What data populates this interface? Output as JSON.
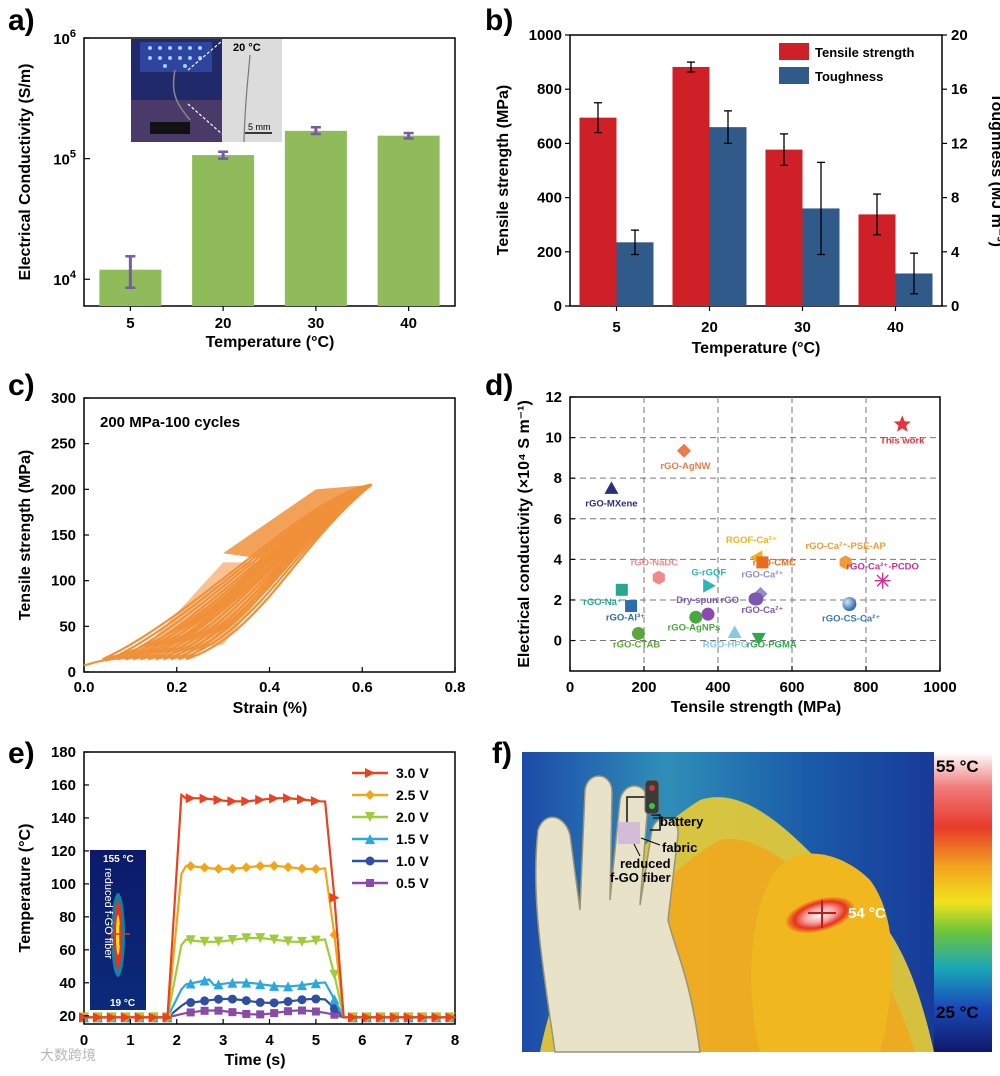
{
  "panels": {
    "a": "a)",
    "b": "b)",
    "c": "c)",
    "d": "d)",
    "e": "e)",
    "f": "f)"
  },
  "colors": {
    "green": "#8fbb5a",
    "purple": "#7a5aa6",
    "red": "#cf2027",
    "blue": "#2f5a8a",
    "orange": "#f0913a"
  },
  "chart_data": [
    {
      "id": "a",
      "type": "bar",
      "xlabel": "Temperature (°C)",
      "ylabel": "Electrical Conductivity (S/m)",
      "yscale": "log",
      "ylim": [
        6000,
        1000000
      ],
      "ytick_labels": [
        {
          "base": "10",
          "exp": "4",
          "v": 10000
        },
        {
          "base": "10",
          "exp": "5",
          "v": 100000
        },
        {
          "base": "10",
          "exp": "6",
          "v": 1000000
        }
      ],
      "categories": [
        "5",
        "20",
        "30",
        "40"
      ],
      "values": [
        12000,
        107000,
        170000,
        155000
      ],
      "err_low": [
        8500,
        100000,
        160000,
        147000
      ],
      "err_high": [
        15500,
        114000,
        182000,
        163000
      ],
      "inset": {
        "temp_label": "20 °C",
        "scale_label": "5 mm"
      }
    },
    {
      "id": "b",
      "type": "bar",
      "xlabel": "Temperature (°C)",
      "ylabel": "Tensile strength (MPa)",
      "ylabel2": "Toughness (MJ m⁻³)",
      "ylim": [
        0,
        1000
      ],
      "ylim2": [
        0,
        20
      ],
      "yticks": [
        0,
        200,
        400,
        600,
        800,
        1000
      ],
      "yticks2": [
        0,
        4,
        8,
        12,
        16,
        20
      ],
      "categories": [
        "5",
        "20",
        "30",
        "40"
      ],
      "series": [
        {
          "name": "Tensile strength",
          "axis": "left",
          "values": [
            695,
            882,
            577,
            338
          ],
          "err": [
            55,
            18,
            58,
            75
          ]
        },
        {
          "name": "Toughness",
          "axis": "right",
          "values": [
            4.7,
            13.2,
            7.2,
            2.4
          ],
          "err": [
            0.9,
            1.2,
            3.4,
            1.5
          ]
        }
      ],
      "legend": "top-right"
    },
    {
      "id": "c",
      "type": "line",
      "title": "200 MPa-100 cycles",
      "xlabel": "Strain (%)",
      "ylabel": "Tensile strength (MPa)",
      "xlim": [
        0,
        0.8
      ],
      "ylim": [
        0,
        300
      ],
      "xticks": [
        "0.0",
        "0.2",
        "0.4",
        "0.6",
        "0.8"
      ],
      "yticks": [
        0,
        50,
        100,
        150,
        200,
        250,
        300
      ],
      "peak": {
        "strain": 0.62,
        "stress": 205
      },
      "cycles": 100
    },
    {
      "id": "d",
      "type": "scatter",
      "xlabel": "Tensile strength (MPa)",
      "ylabel": "Electrical conductivity (×10⁴ S m⁻¹)",
      "xlim": [
        0,
        1000
      ],
      "ylim": [
        -1.5,
        12
      ],
      "xticks": [
        0,
        200,
        400,
        600,
        800,
        1000
      ],
      "yticks": [
        0,
        2,
        4,
        6,
        8,
        10,
        12
      ],
      "points": [
        {
          "label": "This work",
          "x": 898,
          "y": 10.65,
          "marker": "star",
          "color": "#e8323c",
          "lx": 898,
          "ly": 9.7
        },
        {
          "label": "rGO-AgNW",
          "x": 308,
          "y": 9.35,
          "marker": "diamond",
          "color": "#ec7a4a",
          "lx": 312,
          "ly": 8.45
        },
        {
          "label": "rGO-MXene",
          "x": 112,
          "y": 7.5,
          "marker": "triangle",
          "color": "#2b2d7e",
          "lx": 112,
          "ly": 6.6
        },
        {
          "label": "RGOF-Ca²⁺",
          "x": 505,
          "y": 4.1,
          "marker": "triangle-left",
          "color": "#f2b11b",
          "lx": 490,
          "ly": 4.8
        },
        {
          "label": "rGO-Ca²⁺-PSE-AP",
          "x": 745,
          "y": 3.85,
          "marker": "hexagon",
          "color": "#f09a3a",
          "lx": 745,
          "ly": 4.5
        },
        {
          "label": "rGO-NaDC",
          "x": 240,
          "y": 3.1,
          "marker": "hexagon",
          "color": "#f08a8a",
          "lx": 228,
          "ly": 3.7
        },
        {
          "label": "rGO-CMC",
          "x": 520,
          "y": 3.85,
          "marker": "square",
          "color": "#e86d1b",
          "lx": 552,
          "ly": 3.7
        },
        {
          "label": "G-rGQF",
          "x": 375,
          "y": 2.7,
          "marker": "triangle-right",
          "color": "#27b7b5",
          "lx": 375,
          "ly": 3.2
        },
        {
          "label": "rGO-Ca²⁺",
          "x": 515,
          "y": 2.3,
          "marker": "diamond",
          "color": "#8f8fcf",
          "lx": 520,
          "ly": 3.1
        },
        {
          "label": "rGO-Ca²⁺-PCDO",
          "x": 845,
          "y": 2.95,
          "marker": "asterisk",
          "color": "#d42c8f",
          "lx": 845,
          "ly": 3.5
        },
        {
          "label": "rGO-Na⁺",
          "x": 140,
          "y": 2.5,
          "marker": "square",
          "color": "#2aa58f",
          "lx": 88,
          "ly": 1.75
        },
        {
          "label": "rGO-Al³⁺",
          "x": 165,
          "y": 1.7,
          "marker": "square",
          "color": "#2a6eb0",
          "lx": 150,
          "ly": 1.0
        },
        {
          "label": "Dry-spun rGO",
          "x": 500,
          "y": 2.05,
          "marker": "circle",
          "color": "#7a5ab0",
          "lx": 372,
          "ly": 1.85
        },
        {
          "label": "rGO-Ca²⁺",
          "x": 505,
          "y": 2.05,
          "marker": "circle",
          "color": "#7a5ab0",
          "lx": 520,
          "ly": 1.35
        },
        {
          "label": "rGO-CS-Ca²⁺",
          "x": 755,
          "y": 1.8,
          "marker": "sphere",
          "color": "#3a7ab8",
          "lx": 760,
          "ly": 0.95
        },
        {
          "label": "rGO-AgNPs",
          "x": 340,
          "y": 1.15,
          "marker": "circle",
          "color": "#4aa83a",
          "lx": 335,
          "ly": 0.5
        },
        {
          "label": "",
          "x": 373,
          "y": 1.3,
          "marker": "circle",
          "color": "#8a4ab0",
          "lx": 0,
          "ly": 0
        },
        {
          "label": "rGO-CTAB",
          "x": 185,
          "y": 0.35,
          "marker": "circle",
          "color": "#5aa83a",
          "lx": 180,
          "ly": -0.35
        },
        {
          "label": "RGO-HPG",
          "x": 445,
          "y": 0.4,
          "marker": "triangle",
          "color": "#8ac8e8",
          "lx": 420,
          "ly": -0.35
        },
        {
          "label": "rGO-PGMA",
          "x": 510,
          "y": 0.1,
          "marker": "triangle-down",
          "color": "#2fa84a",
          "lx": 545,
          "ly": -0.35
        }
      ]
    },
    {
      "id": "e",
      "type": "line",
      "xlabel": "Time (s)",
      "ylabel": "Temperature (°C)",
      "xlim": [
        0,
        8
      ],
      "ylim": [
        15,
        180
      ],
      "xticks": [
        0,
        1,
        2,
        3,
        4,
        5,
        6,
        7,
        8
      ],
      "yticks": [
        20,
        40,
        60,
        80,
        100,
        120,
        140,
        160,
        180
      ],
      "series": [
        {
          "name": "3.0 V",
          "color": "#e8421e",
          "marker": "triangle-right",
          "plateau": 151,
          "start": 154
        },
        {
          "name": "2.5 V",
          "color": "#f2a516",
          "marker": "diamond",
          "plateau": 110,
          "start": 106
        },
        {
          "name": "2.0 V",
          "color": "#9fcc3b",
          "marker": "triangle-down",
          "plateau": 66,
          "start": 63
        },
        {
          "name": "1.5 V",
          "color": "#2ba9de",
          "marker": "triangle",
          "plateau": 39,
          "start": 36
        },
        {
          "name": "1.0 V",
          "color": "#2f4fa2",
          "marker": "circle",
          "plateau": 29,
          "start": 26
        },
        {
          "name": "0.5 V",
          "color": "#8a4aa8",
          "marker": "square",
          "plateau": 22,
          "start": 21
        }
      ],
      "baseline": 19,
      "inset": {
        "top": "155 °C",
        "bottom": "19 °C",
        "caption": "reduced f-GO fiber"
      }
    },
    {
      "id": "f",
      "type": "heatmap",
      "scale_max": "55 °C",
      "scale_min": "25 °C",
      "hotspot": "54 °C",
      "labels": {
        "battery": "battery",
        "fabric": "fabric",
        "fiber_1": "reduced",
        "fiber_2": "f-GO fiber"
      }
    }
  ],
  "watermark": "大数跨境"
}
